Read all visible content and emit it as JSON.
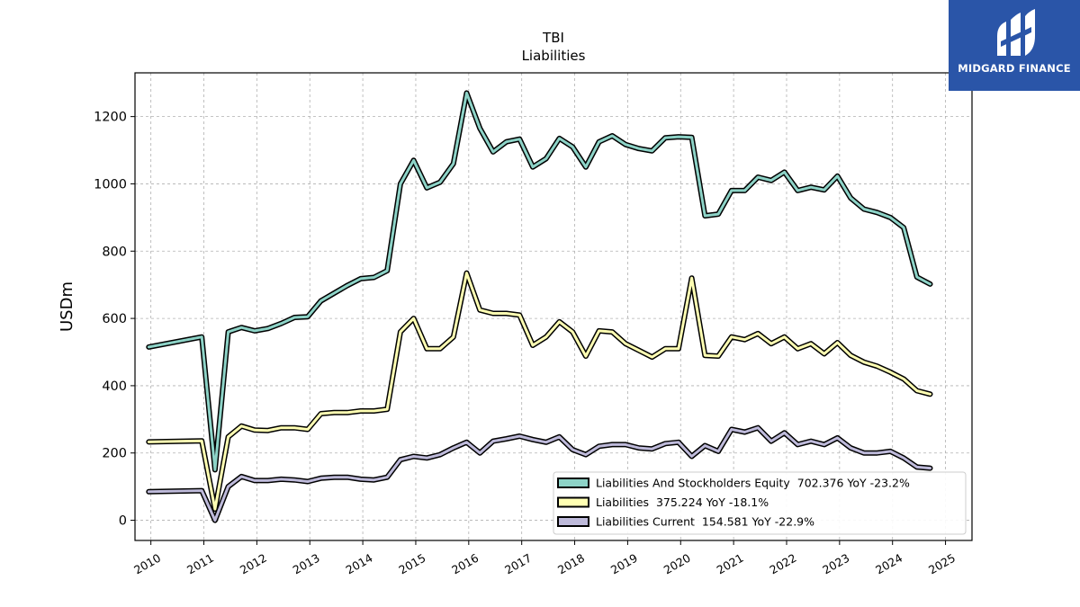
{
  "brand": {
    "name": "MIDGARD FINANCE",
    "icon": "midgard-logo-icon",
    "bg_color": "#2a55a8"
  },
  "chart_data": {
    "type": "line",
    "title": "TBI",
    "subtitle": "Liabilities",
    "xlabel": "",
    "ylabel": "USDm",
    "xlim": [
      2009.7,
      2025.5
    ],
    "ylim": [
      -60,
      1330
    ],
    "x_ticks": [
      "2010",
      "2011",
      "2012",
      "2013",
      "2014",
      "2015",
      "2016",
      "2017",
      "2018",
      "2019",
      "2020",
      "2021",
      "2022",
      "2023",
      "2024",
      "2025"
    ],
    "y_ticks": [
      "0",
      "200",
      "400",
      "600",
      "800",
      "1000",
      "1200"
    ],
    "grid": true,
    "legend_position": "lower-right",
    "x": [
      2009.96,
      2010.96,
      2011.21,
      2011.46,
      2011.71,
      2011.96,
      2012.21,
      2012.46,
      2012.71,
      2012.96,
      2013.21,
      2013.46,
      2013.71,
      2013.96,
      2014.21,
      2014.46,
      2014.71,
      2014.96,
      2015.21,
      2015.46,
      2015.71,
      2015.96,
      2016.21,
      2016.46,
      2016.71,
      2016.96,
      2017.21,
      2017.46,
      2017.71,
      2017.96,
      2018.21,
      2018.46,
      2018.71,
      2018.96,
      2019.21,
      2019.46,
      2019.71,
      2019.96,
      2020.21,
      2020.46,
      2020.71,
      2020.96,
      2021.21,
      2021.46,
      2021.71,
      2021.96,
      2022.21,
      2022.46,
      2022.71,
      2022.96,
      2023.21,
      2023.46,
      2023.71,
      2023.96,
      2024.21,
      2024.46,
      2024.71
    ],
    "series": [
      {
        "name": "Liabilities And Stockholders Equity  702.376 YoY -23.2%",
        "color": "#8dd3c7",
        "values": [
          515,
          545,
          150,
          560,
          573,
          563,
          570,
          585,
          603,
          605,
          652,
          675,
          698,
          718,
          722,
          742,
          1000,
          1070,
          988,
          1005,
          1060,
          1270,
          1165,
          1095,
          1125,
          1133,
          1050,
          1075,
          1135,
          1110,
          1050,
          1125,
          1143,
          1117,
          1105,
          1098,
          1137,
          1140,
          1138,
          905,
          910,
          980,
          980,
          1020,
          1010,
          1035,
          980,
          990,
          982,
          1023,
          958,
          925,
          915,
          900,
          870,
          723,
          702
        ]
      },
      {
        "name": "Liabilities  375.224 YoY -18.1%",
        "color": "#ffffb3",
        "values": [
          233,
          236,
          33,
          248,
          280,
          268,
          267,
          275,
          275,
          270,
          317,
          320,
          320,
          325,
          325,
          330,
          560,
          600,
          510,
          510,
          545,
          735,
          625,
          615,
          615,
          610,
          520,
          545,
          590,
          560,
          488,
          563,
          560,
          525,
          505,
          485,
          510,
          510,
          720,
          490,
          488,
          545,
          537,
          555,
          525,
          545,
          510,
          525,
          495,
          528,
          490,
          470,
          458,
          440,
          420,
          385,
          375
        ]
      },
      {
        "name": "Liabilities Current  154.581 YoY -22.9%",
        "color": "#bebada",
        "values": [
          85,
          88,
          0,
          100,
          130,
          118,
          118,
          122,
          120,
          115,
          125,
          128,
          128,
          122,
          120,
          128,
          180,
          190,
          185,
          195,
          215,
          232,
          200,
          235,
          242,
          250,
          240,
          232,
          248,
          210,
          195,
          220,
          225,
          225,
          215,
          212,
          228,
          232,
          190,
          222,
          205,
          270,
          262,
          275,
          235,
          260,
          225,
          235,
          225,
          245,
          215,
          200,
          200,
          205,
          185,
          158,
          155
        ]
      }
    ]
  }
}
